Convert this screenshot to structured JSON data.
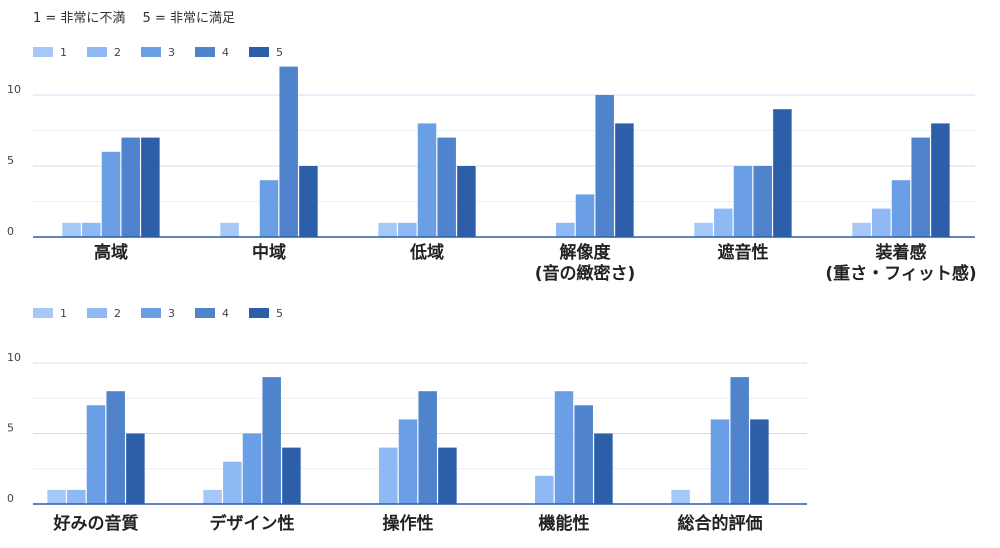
{
  "note": "1 = 非常に不満　 5 = 非常に満足",
  "colors": [
    "#a6c8f8",
    "#8fb9f5",
    "#6a9fe6",
    "#4f84cc",
    "#2d5ea8"
  ],
  "chart_data": [
    {
      "type": "bar",
      "legend_position": "top-left",
      "legend": [
        "1",
        "2",
        "3",
        "4",
        "5"
      ],
      "yticks": [
        "0",
        "5",
        "10"
      ],
      "ylim": [
        0,
        13
      ],
      "categories": [
        [
          "高域"
        ],
        [
          "中域"
        ],
        [
          "低域"
        ],
        [
          "解像度",
          "(音の緻密さ)"
        ],
        [
          "遮音性"
        ],
        [
          "装着感",
          "(重さ・フィット感)"
        ]
      ],
      "series": [
        {
          "name": "1",
          "values": [
            1,
            1,
            1,
            0,
            1,
            1
          ]
        },
        {
          "name": "2",
          "values": [
            1,
            0,
            1,
            1,
            2,
            2
          ]
        },
        {
          "name": "3",
          "values": [
            6,
            4,
            8,
            3,
            5,
            4
          ]
        },
        {
          "name": "4",
          "values": [
            7,
            12,
            7,
            10,
            5,
            7
          ]
        },
        {
          "name": "5",
          "values": [
            7,
            5,
            5,
            8,
            9,
            8
          ]
        }
      ]
    },
    {
      "type": "bar",
      "legend_position": "top-left",
      "legend": [
        "1",
        "2",
        "3",
        "4",
        "5"
      ],
      "yticks": [
        "0",
        "5",
        "10"
      ],
      "ylim": [
        0,
        13
      ],
      "categories": [
        [
          "好みの音質"
        ],
        [
          "デザイン性"
        ],
        [
          "操作性"
        ],
        [
          "機能性"
        ],
        [
          "総合的評価"
        ]
      ],
      "series": [
        {
          "name": "1",
          "values": [
            1,
            1,
            0,
            0,
            1
          ]
        },
        {
          "name": "2",
          "values": [
            1,
            3,
            4,
            2,
            0
          ]
        },
        {
          "name": "3",
          "values": [
            7,
            5,
            6,
            8,
            6
          ]
        },
        {
          "name": "4",
          "values": [
            8,
            9,
            8,
            7,
            9
          ]
        },
        {
          "name": "5",
          "values": [
            5,
            4,
            4,
            5,
            6
          ]
        }
      ]
    }
  ]
}
